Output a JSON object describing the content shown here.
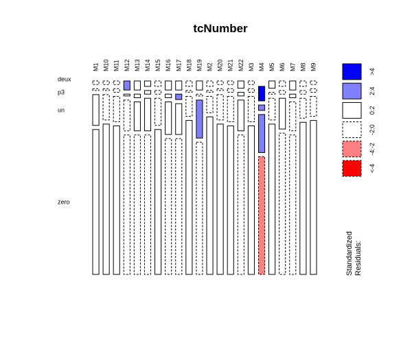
{
  "chart_data": {
    "type": "mosaic",
    "title": "tcNumber",
    "columns": [
      "M1",
      "M10",
      "M11",
      "M12",
      "M13",
      "M14",
      "M15",
      "M16",
      "M17",
      "M18",
      "M19",
      "M2",
      "M20",
      "M21",
      "M22",
      "M3",
      "M4",
      "M5",
      "M6",
      "M7",
      "M8",
      "M9"
    ],
    "rows": [
      "zero",
      "un",
      "p3",
      "deux"
    ],
    "row_labels": [
      {
        "key": "deux",
        "text": "deux"
      },
      {
        "key": "p3",
        "text": "p3"
      },
      {
        "key": "un",
        "text": "un"
      },
      {
        "key": "zero",
        "text": "zero"
      }
    ],
    "row_order_bottom_to_top": [
      "zero",
      "un",
      "p3",
      "deux"
    ],
    "cells": [
      {
        "column": "M1",
        "proportions": {
          "zero": 0.8,
          "un": 0.17,
          "p3": 0.01,
          "deux": 0.02
        },
        "residual_class": {
          "zero": "0:2",
          "un": "0:2",
          "p3": "-2:0",
          "deux": "-2:0"
        }
      },
      {
        "column": "M10",
        "proportions": {
          "zero": 0.83,
          "un": 0.14,
          "p3": 0.01,
          "deux": 0.02
        },
        "residual_class": {
          "zero": "0:2",
          "un": "-2:0",
          "p3": "-2:0",
          "deux": "-2:0"
        }
      },
      {
        "column": "M11",
        "proportions": {
          "zero": 0.82,
          "un": 0.14,
          "p3": 0.02,
          "deux": 0.02
        },
        "residual_class": {
          "zero": "0:2",
          "un": "-2:0",
          "p3": "-2:0",
          "deux": "-2:0"
        }
      },
      {
        "column": "M12",
        "proportions": {
          "zero": 0.77,
          "un": 0.17,
          "p3": 0.01,
          "deux": 0.05
        },
        "residual_class": {
          "zero": "-2:0",
          "un": "-2:0",
          "p3": "0:2",
          "deux": "2:4"
        }
      },
      {
        "column": "M13",
        "proportions": {
          "zero": 0.77,
          "un": 0.16,
          "p3": 0.02,
          "deux": 0.05
        },
        "residual_class": {
          "zero": "-2:0",
          "un": "0:2",
          "p3": "0:2",
          "deux": "0:2"
        }
      },
      {
        "column": "M14",
        "proportions": {
          "zero": 0.77,
          "un": 0.18,
          "p3": 0.02,
          "deux": 0.03
        },
        "residual_class": {
          "zero": "-2:0",
          "un": "0:2",
          "p3": "0:2",
          "deux": "0:2"
        }
      },
      {
        "column": "M15",
        "proportions": {
          "zero": 0.8,
          "un": 0.15,
          "p3": 0.02,
          "deux": 0.03
        },
        "residual_class": {
          "zero": "0:2",
          "un": "-2:0",
          "p3": "-2:0",
          "deux": "-2:0"
        }
      },
      {
        "column": "M16",
        "proportions": {
          "zero": 0.75,
          "un": 0.18,
          "p3": 0.02,
          "deux": 0.05
        },
        "residual_class": {
          "zero": "-2:0",
          "un": "0:2",
          "p3": "0:2",
          "deux": "0:2"
        }
      },
      {
        "column": "M17",
        "proportions": {
          "zero": 0.75,
          "un": 0.17,
          "p3": 0.03,
          "deux": 0.05
        },
        "residual_class": {
          "zero": "-2:0",
          "un": "0:2",
          "p3": "2:4",
          "deux": "0:2"
        }
      },
      {
        "column": "M18",
        "proportions": {
          "zero": 0.85,
          "un": 0.11,
          "p3": 0.01,
          "deux": 0.03
        },
        "residual_class": {
          "zero": "0:2",
          "un": "-2:0",
          "p3": "-2:0",
          "deux": "-2:0"
        }
      },
      {
        "column": "M19",
        "proportions": {
          "zero": 0.73,
          "un": 0.21,
          "p3": 0.01,
          "deux": 0.05
        },
        "residual_class": {
          "zero": "-2:0",
          "un": "2:4",
          "p3": "-2:0",
          "deux": "0:2"
        }
      },
      {
        "column": "M2",
        "proportions": {
          "zero": 0.87,
          "un": 0.09,
          "p3": 0.01,
          "deux": 0.03
        },
        "residual_class": {
          "zero": "0:2",
          "un": "-2:0",
          "p3": "-2:0",
          "deux": "-2:0"
        }
      },
      {
        "column": "M20",
        "proportions": {
          "zero": 0.83,
          "un": 0.14,
          "p3": 0.01,
          "deux": 0.02
        },
        "residual_class": {
          "zero": "0:2",
          "un": "-2:0",
          "p3": "-2:0",
          "deux": "-2:0"
        }
      },
      {
        "column": "M21",
        "proportions": {
          "zero": 0.82,
          "un": 0.14,
          "p3": 0.02,
          "deux": 0.02
        },
        "residual_class": {
          "zero": "0:2",
          "un": "-2:0",
          "p3": "-2:0",
          "deux": "-2:0"
        }
      },
      {
        "column": "M22",
        "proportions": {
          "zero": 0.77,
          "un": 0.17,
          "p3": 0.02,
          "deux": 0.04
        },
        "residual_class": {
          "zero": "-2:0",
          "un": "0:2",
          "p3": "0:2",
          "deux": "0:2"
        }
      },
      {
        "column": "M3",
        "proportions": {
          "zero": 0.82,
          "un": 0.14,
          "p3": 0.02,
          "deux": 0.02
        },
        "residual_class": {
          "zero": "0:2",
          "un": "-2:0",
          "p3": "-2:0",
          "deux": "-2:0"
        }
      },
      {
        "column": "M4",
        "proportions": {
          "zero": 0.65,
          "un": 0.21,
          "p3": 0.03,
          "deux": 0.08
        },
        "residual_class": {
          "zero": "-4:-2",
          "un": "2:4",
          "p3": "2:4",
          "deux": ">4"
        }
      },
      {
        "column": "M5",
        "proportions": {
          "zero": 0.83,
          "un": 0.12,
          "p3": 0.01,
          "deux": 0.04
        },
        "residual_class": {
          "zero": "0:2",
          "un": "-2:0",
          "p3": "-2:0",
          "deux": "0:2"
        }
      },
      {
        "column": "M6",
        "proportions": {
          "zero": 0.78,
          "un": 0.17,
          "p3": 0.02,
          "deux": 0.03
        },
        "residual_class": {
          "zero": "-2:0",
          "un": "0:2",
          "p3": "-2:0",
          "deux": "-2:0"
        }
      },
      {
        "column": "M7",
        "proportions": {
          "zero": 0.77,
          "un": 0.16,
          "p3": 0.02,
          "deux": 0.05
        },
        "residual_class": {
          "zero": "-2:0",
          "un": "-2:0",
          "p3": "0:2",
          "deux": "0:2"
        }
      },
      {
        "column": "M8",
        "proportions": {
          "zero": 0.84,
          "un": 0.11,
          "p3": 0.02,
          "deux": 0.03
        },
        "residual_class": {
          "zero": "0:2",
          "un": "-2:0",
          "p3": "-2:0",
          "deux": "-2:0"
        }
      },
      {
        "column": "M9",
        "proportions": {
          "zero": 0.85,
          "un": 0.11,
          "p3": 0.02,
          "deux": 0.02
        },
        "residual_class": {
          "zero": "0:2",
          "un": "-2:0",
          "p3": "-2:0",
          "deux": "-2:0"
        }
      }
    ],
    "legend": {
      "title_lines": [
        "Standardized",
        "Residuals:"
      ],
      "placement": "right",
      "entries": [
        {
          "label": ">4",
          "fill": "#0000ff",
          "dashed": false
        },
        {
          "label": "2:4",
          "fill": "#8080ff",
          "dashed": false
        },
        {
          "label": "0:2",
          "fill": "#ffffff",
          "dashed": false
        },
        {
          "label": "-2:0",
          "fill": "#ffffff",
          "dashed": true
        },
        {
          "label": "-4:-2",
          "fill": "#ff8080",
          "dashed": true
        },
        {
          "label": "<-4",
          "fill": "#ff0000",
          "dashed": true
        }
      ]
    }
  }
}
